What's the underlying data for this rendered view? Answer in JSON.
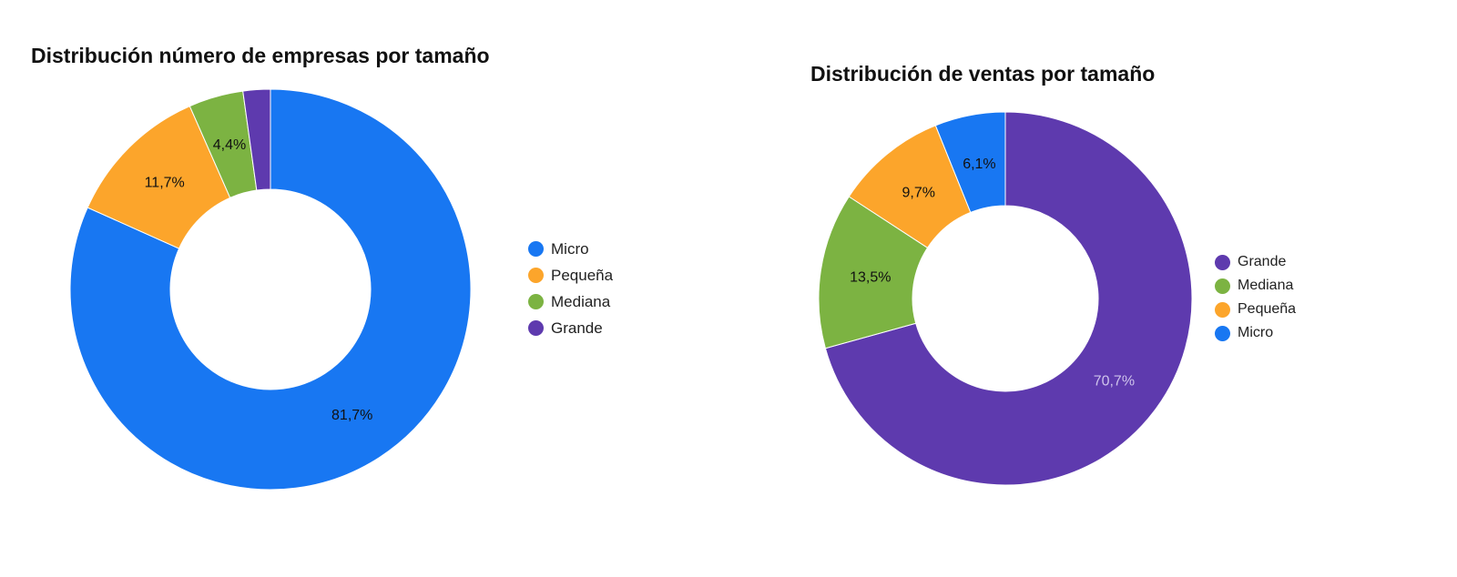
{
  "colors": {
    "Micro": "#1877f2",
    "Pequeña": "#fca52b",
    "Mediana": "#7cb342",
    "Grande": "#5e3aae"
  },
  "chart_data": [
    {
      "type": "pie",
      "donut": true,
      "title": "Distribución número de empresas por tamaño",
      "legend_position": "right",
      "slices": [
        {
          "label": "Micro",
          "value": 81.7,
          "data_label": "81,7%",
          "label_color": "#111111"
        },
        {
          "label": "Pequeña",
          "value": 11.7,
          "data_label": "11,7%",
          "label_color": "#111111"
        },
        {
          "label": "Mediana",
          "value": 4.4,
          "data_label": "4,4%",
          "label_color": "#111111"
        },
        {
          "label": "Grande",
          "value": 2.2,
          "data_label": "",
          "label_color": "#111111"
        }
      ]
    },
    {
      "type": "pie",
      "donut": true,
      "title": "Distribución de ventas por tamaño",
      "legend_position": "right",
      "slices": [
        {
          "label": "Grande",
          "value": 70.7,
          "data_label": "70,7%",
          "label_color": "#cfc4ec"
        },
        {
          "label": "Mediana",
          "value": 13.5,
          "data_label": "13,5%",
          "label_color": "#111111"
        },
        {
          "label": "Pequeña",
          "value": 9.7,
          "data_label": "9,7%",
          "label_color": "#111111"
        },
        {
          "label": "Micro",
          "value": 6.1,
          "data_label": "6,1%",
          "label_color": "#111111"
        }
      ]
    }
  ]
}
